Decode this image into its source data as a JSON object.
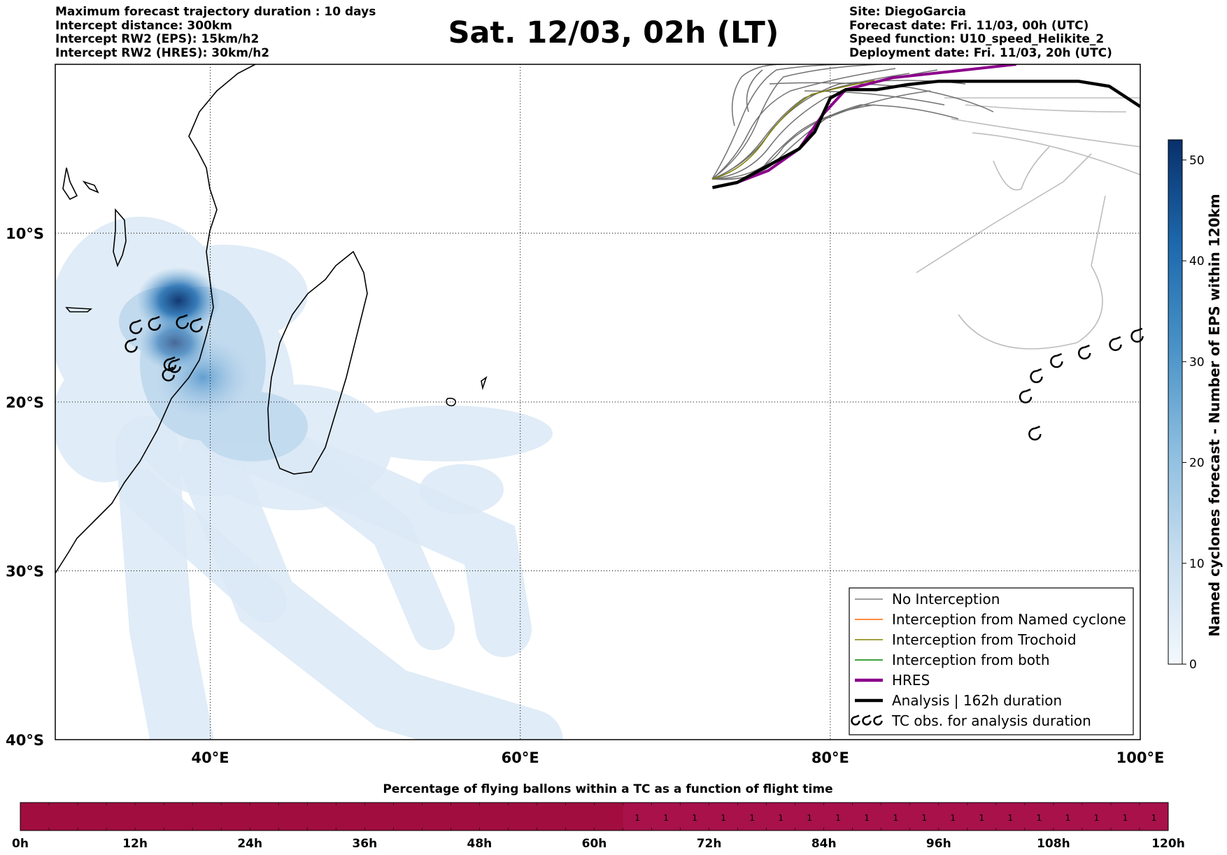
{
  "header_left": [
    "Maximum forecast trajectory duration : 10 days",
    "Intercept distance: 300km",
    "Intercept RW2 (EPS):  15km/h2",
    "Intercept RW2 (HRES): 30km/h2"
  ],
  "header_right": [
    "Site: DiegoGarcia",
    "Forecast date: Fri. 11/03, 00h (UTC)",
    "Speed function: U10_speed_Helikite_2",
    "Deployment date: Fri. 11/03, 20h (UTC)"
  ],
  "title": "Sat. 12/03, 02h (LT)",
  "colors": {
    "no_interception": "#808080",
    "named_cyclone": "#ff6600",
    "trochoid": "#808000",
    "both": "#008000",
    "hres": "#8b008b",
    "analysis": "#000000",
    "bar": "#a10d3f"
  },
  "chart_data": [
    {
      "type": "map",
      "xlim": [
        30,
        100
      ],
      "ylim": [
        -40,
        0
      ],
      "x_ticks": [
        40,
        60,
        80,
        100
      ],
      "x_tick_labels": [
        "40°E",
        "60°E",
        "80°E",
        "100°E"
      ],
      "y_ticks": [
        -10,
        -20,
        -30,
        -40
      ],
      "y_tick_labels": [
        "10°S",
        "20°S",
        "30°S",
        "40°S"
      ],
      "grid": true,
      "legend_position": "bottom-right",
      "legend": [
        {
          "label": "No Interception",
          "color": "#808080",
          "style": "thin"
        },
        {
          "label": "Interception from Named cyclone",
          "color": "#ff6600",
          "style": "thin"
        },
        {
          "label": "Interception from Trochoid",
          "color": "#808000",
          "style": "thin"
        },
        {
          "label": "Interception from both",
          "color": "#008000",
          "style": "thin"
        },
        {
          "label": "HRES",
          "color": "#8b008b",
          "style": "thick"
        },
        {
          "label": "Analysis | 162h duration",
          "color": "#000000",
          "style": "thick"
        },
        {
          "label": "TC obs. for analysis duration",
          "color": "#000000",
          "style": "marker"
        }
      ],
      "release_point": [
        72.4,
        -7.3
      ],
      "analysis_track": [
        [
          72.4,
          -7.3
        ],
        [
          74,
          -7
        ],
        [
          76,
          -6
        ],
        [
          78,
          -5
        ],
        [
          79,
          -4
        ],
        [
          80,
          -2
        ],
        [
          81,
          -1.5
        ],
        [
          83,
          -1.5
        ],
        [
          85,
          -1.2
        ],
        [
          87,
          -1
        ],
        [
          90,
          -1
        ],
        [
          93,
          -1
        ],
        [
          96,
          -1
        ],
        [
          98,
          -1.3
        ],
        [
          100,
          -2.5
        ]
      ],
      "hres_track": [
        [
          72.4,
          -7.3
        ],
        [
          74,
          -7
        ],
        [
          76,
          -6.3
        ],
        [
          78,
          -5
        ],
        [
          79.5,
          -3
        ],
        [
          81,
          -1.5
        ],
        [
          84,
          -0.8
        ],
        [
          88,
          -0.4
        ],
        [
          92,
          0
        ]
      ],
      "tc_observations": [
        [
          35.2,
          -15.6
        ],
        [
          36.4,
          -15.4
        ],
        [
          38.2,
          -15.3
        ],
        [
          39.1,
          -15.5
        ],
        [
          34.9,
          -16.7
        ],
        [
          37.4,
          -17.8
        ],
        [
          37.7,
          -17.9
        ],
        [
          37.3,
          -18.4
        ],
        [
          92.6,
          -19.7
        ],
        [
          93.3,
          -18.5
        ],
        [
          94.6,
          -17.6
        ],
        [
          96.4,
          -17.1
        ],
        [
          98.4,
          -16.6
        ],
        [
          99.8,
          -16.1
        ],
        [
          93.2,
          -21.9
        ]
      ],
      "colorbar": {
        "label": "Named cyclones forecast - Number of EPS within 120km",
        "min": 0,
        "max": 52,
        "ticks": [
          0,
          10,
          20,
          30,
          40,
          50
        ]
      }
    },
    {
      "type": "heatmap",
      "title": "Percentage of flying ballons within a TC as a function of flight time",
      "x_ticks": [
        0,
        12,
        24,
        36,
        48,
        60,
        72,
        84,
        96,
        108,
        120
      ],
      "x_tick_labels": [
        "0h",
        "12h",
        "24h",
        "36h",
        "48h",
        "60h",
        "72h",
        "84h",
        "96h",
        "108h",
        "120h"
      ],
      "bins_hours": 3,
      "values": [
        0,
        0,
        0,
        0,
        0,
        0,
        0,
        0,
        0,
        0,
        0,
        0,
        0,
        0,
        0,
        0,
        0,
        0,
        0,
        0,
        0,
        1,
        1,
        1,
        1,
        1,
        1,
        1,
        1,
        1,
        1,
        1,
        1,
        1,
        1,
        1,
        1,
        1,
        1,
        1
      ],
      "value_labels": [
        "1",
        "1",
        "1",
        "1",
        "1",
        "1",
        "1",
        "1",
        "1",
        "1",
        "1",
        "1",
        "1",
        "1",
        "1",
        "1",
        "1",
        "1",
        "1"
      ]
    }
  ]
}
